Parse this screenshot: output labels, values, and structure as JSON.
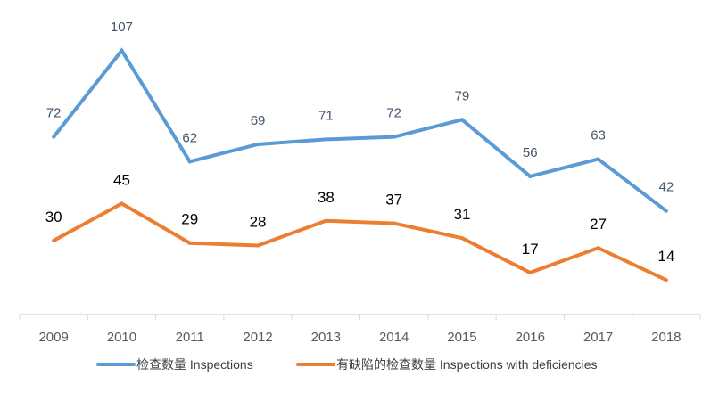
{
  "chart_data": {
    "type": "line",
    "categories": [
      "2009",
      "2010",
      "2011",
      "2012",
      "2013",
      "2014",
      "2015",
      "2016",
      "2017",
      "2018"
    ],
    "series": [
      {
        "name": "检查数量 Inspections",
        "color": "#5b9bd5",
        "values": [
          72,
          107,
          62,
          69,
          71,
          72,
          79,
          56,
          63,
          42
        ]
      },
      {
        "name": "有缺陷的检查数量 Inspections with deficiencies",
        "color": "#ed7d31",
        "values": [
          30,
          45,
          29,
          28,
          38,
          37,
          31,
          17,
          27,
          14
        ]
      }
    ],
    "ylim": [
      0,
      127.5
    ],
    "grid": false,
    "legend": "bottom"
  }
}
